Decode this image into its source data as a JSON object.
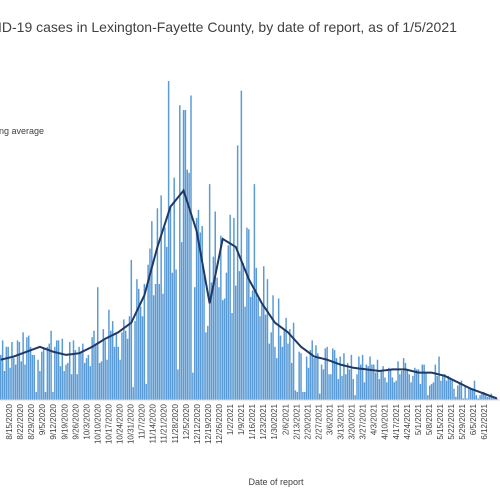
{
  "chart_data": {
    "type": "bar",
    "title": "ID-19 cases in Lexington-Fayette County, by date of report, as of 1/5/2021",
    "legend": [
      {
        "label": "ng average",
        "marker": "line"
      }
    ],
    "xlabel": "Date of report",
    "ylabel": "",
    "x_tick_labels": [
      "8/15/2020",
      "8/22/2020",
      "8/29/2020",
      "9/5/2020",
      "9/12/2020",
      "9/19/2020",
      "9/26/2020",
      "10/3/2020",
      "10/10/2020",
      "10/17/2020",
      "10/24/2020",
      "10/31/2020",
      "11/7/2020",
      "11/14/2020",
      "11/21/2020",
      "11/28/2020",
      "12/5/2020",
      "12/12/2020",
      "12/19/2020",
      "12/26/2020",
      "1/2/2021",
      "1/9/2021",
      "1/16/2021",
      "1/23/2021",
      "1/30/2021",
      "2/6/2021",
      "2/13/2021",
      "2/20/2021",
      "2/27/2021",
      "3/6/2021",
      "3/13/2021",
      "3/20/2021",
      "3/27/2021",
      "4/3/2021",
      "4/10/2021",
      "4/17/2021",
      "4/24/2021",
      "5/1/2021",
      "5/8/2021",
      "5/15/2021",
      "5/22/2021",
      "5/29/2021",
      "6/5/2021",
      "6/12/2021"
    ],
    "moving_average_weekly": [
      25,
      27,
      30,
      33,
      30,
      28,
      29,
      33,
      38,
      42,
      48,
      65,
      95,
      120,
      130,
      105,
      60,
      100,
      95,
      75,
      60,
      48,
      42,
      33,
      27,
      25,
      22,
      20,
      19,
      18,
      19,
      19,
      17,
      17,
      15,
      11,
      7,
      4,
      1
    ],
    "series": [
      {
        "values": [],
        "color": "#5b9bd5"
      },
      {
        "values": [],
        "color": "#1f3864"
      }
    ],
    "colors": {
      "bars": "#5b9bd5",
      "average_line": "#1f3864",
      "text": "#404040"
    },
    "grid": false
  }
}
